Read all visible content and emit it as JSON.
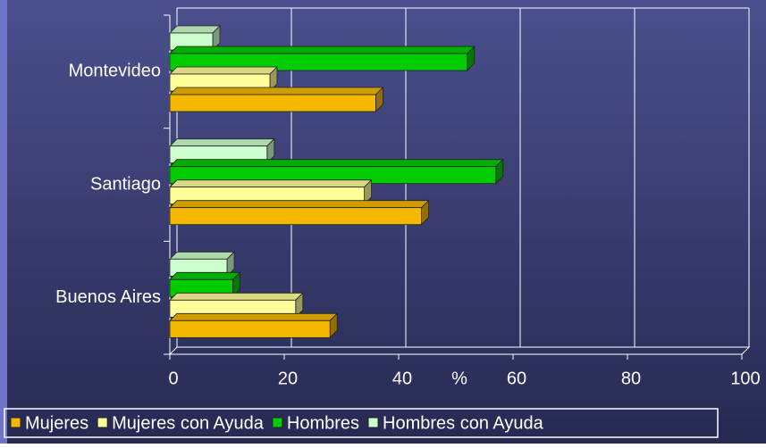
{
  "chart_data": {
    "type": "bar",
    "orientation": "horizontal",
    "categories": [
      "Montevideo",
      "Santiago",
      "Buenos Aires"
    ],
    "series": [
      {
        "name": "Mujeres",
        "color": "#f5b800",
        "values": [
          36,
          44,
          28
        ]
      },
      {
        "name": "Mujeres con Ayuda",
        "color": "#ffff99",
        "values": [
          17.5,
          34,
          22
        ]
      },
      {
        "name": "Hombres",
        "color": "#00cc00",
        "values": [
          52,
          57,
          11
        ]
      },
      {
        "name": "Hombres con Ayuda",
        "color": "#ccffcc",
        "values": [
          7.5,
          17,
          10
        ]
      }
    ],
    "x_label": "%",
    "xlim": [
      0,
      100
    ],
    "xticks": [
      0,
      20,
      40,
      60,
      80,
      100
    ],
    "grid": true,
    "legend": "bottom"
  }
}
